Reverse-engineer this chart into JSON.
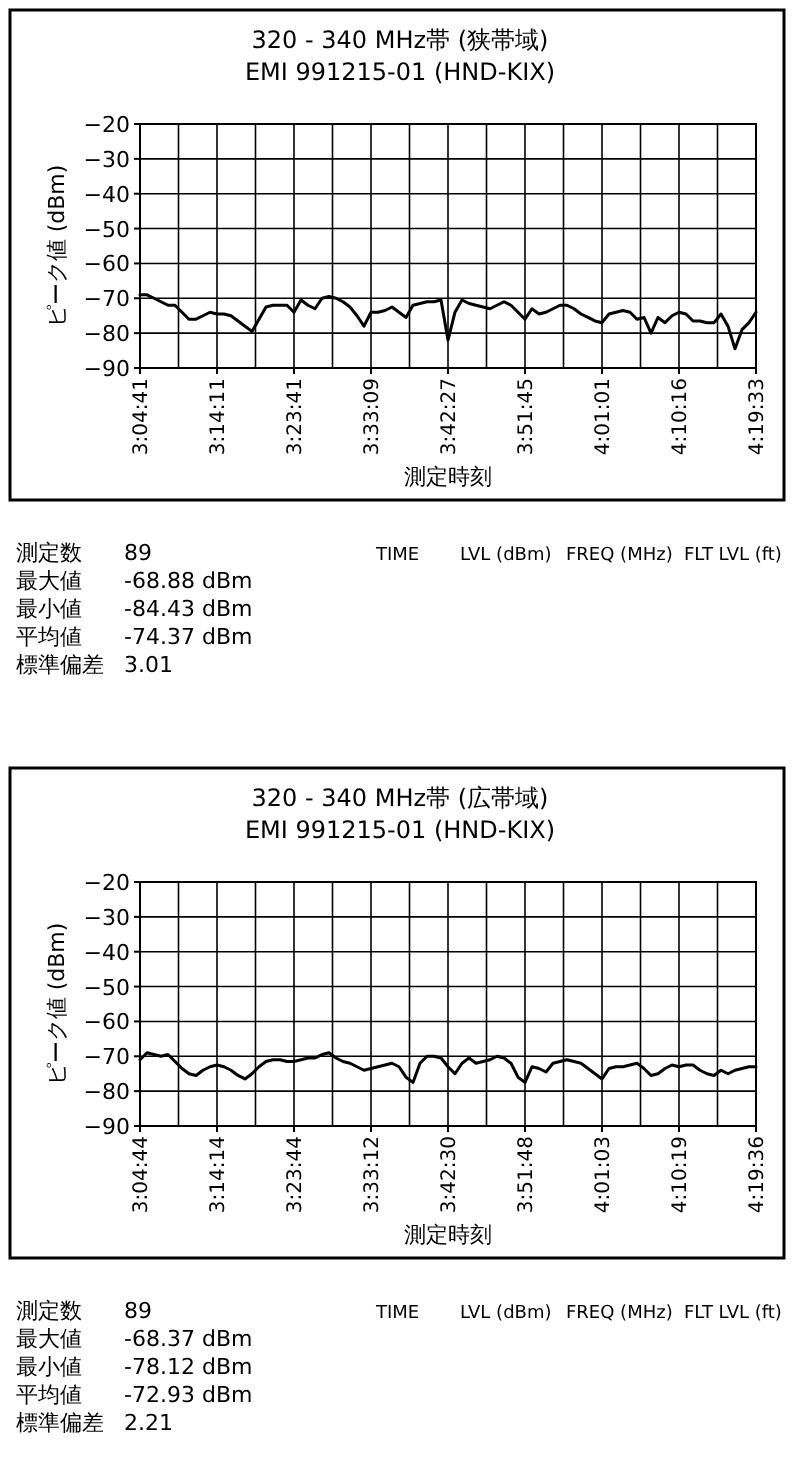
{
  "chart_data": [
    {
      "type": "line",
      "title": "320 - 340 MHz帯 (狭帯域)",
      "subtitle": "EMI 991215-01 (HND-KIX)",
      "xlabel": "測定時刻",
      "ylabel": "ピーク値 (dBm)",
      "color": "#000000",
      "grid": true,
      "ylim": [
        -90,
        -20
      ],
      "yticks": [
        -90,
        -80,
        -70,
        -60,
        -50,
        -40,
        -30,
        -20
      ],
      "categories": [
        "3:04:41",
        null,
        null,
        null,
        null,
        null,
        null,
        null,
        null,
        null,
        null,
        "3:14:11",
        null,
        null,
        null,
        null,
        null,
        null,
        null,
        null,
        null,
        null,
        "3:23:41",
        null,
        null,
        null,
        null,
        null,
        null,
        null,
        null,
        null,
        null,
        "3:33:09",
        null,
        null,
        null,
        null,
        null,
        null,
        null,
        null,
        null,
        null,
        "3:42:27",
        null,
        null,
        null,
        null,
        null,
        null,
        null,
        null,
        null,
        null,
        "3:51:45",
        null,
        null,
        null,
        null,
        null,
        null,
        null,
        null,
        null,
        null,
        "4:01:01",
        null,
        null,
        null,
        null,
        null,
        null,
        null,
        null,
        null,
        null,
        "4:10:16",
        null,
        null,
        null,
        null,
        null,
        null,
        null,
        null,
        null,
        null,
        "4:19:33"
      ],
      "values": [
        -69,
        -69,
        -70,
        -71,
        -72,
        -72,
        -74,
        -76,
        -76,
        -75,
        -74,
        -74.5,
        -74.5,
        -75,
        -76.5,
        -78,
        -79.5,
        -76,
        -72.5,
        -72,
        -72,
        -72,
        -74,
        -70.5,
        -72,
        -73,
        -70,
        -69.5,
        -70,
        -71,
        -72.5,
        -75,
        -78,
        -74,
        -74,
        -73.5,
        -72.5,
        -74,
        -75.5,
        -72,
        -71.5,
        -71,
        -71,
        -70.5,
        -82,
        -74,
        -70.5,
        -71.5,
        -72,
        -72.5,
        -73,
        -72,
        -71,
        -72,
        -74,
        -76,
        -73,
        -74.5,
        -74,
        -73,
        -72,
        -72,
        -73,
        -74.5,
        -75.5,
        -76.5,
        -77,
        -74.5,
        -74,
        -73.5,
        -74,
        -76,
        -75.5,
        -80,
        -75.5,
        -77,
        -75,
        -74,
        -74.5,
        -76.5,
        -76.5,
        -77,
        -77,
        -74.5,
        -78,
        -84.5,
        -79,
        -77,
        -74
      ],
      "annotations": [
        "測定数",
        "89",
        "最大値",
        "-68.88 dBm",
        "最小値",
        "-84.43 dBm",
        "平均値",
        "-74.37 dBm",
        "標準偏差",
        "3.01",
        "TIME",
        "LVL (dBm)",
        "FREQ (MHz)",
        "FLT LVL (ft)"
      ]
    },
    {
      "type": "line",
      "title": "320 - 340 MHz帯 (広帯域)",
      "subtitle": "EMI 991215-01 (HND-KIX)",
      "xlabel": "測定時刻",
      "ylabel": "ピーク値 (dBm)",
      "color": "#000000",
      "grid": true,
      "ylim": [
        -90,
        -20
      ],
      "yticks": [
        -90,
        -80,
        -70,
        -60,
        -50,
        -40,
        -30,
        -20
      ],
      "categories": [
        "3:04:44",
        null,
        null,
        null,
        null,
        null,
        null,
        null,
        null,
        null,
        null,
        "3:14:14",
        null,
        null,
        null,
        null,
        null,
        null,
        null,
        null,
        null,
        null,
        "3:23:44",
        null,
        null,
        null,
        null,
        null,
        null,
        null,
        null,
        null,
        null,
        "3:33:12",
        null,
        null,
        null,
        null,
        null,
        null,
        null,
        null,
        null,
        null,
        "3:42:30",
        null,
        null,
        null,
        null,
        null,
        null,
        null,
        null,
        null,
        null,
        "3:51:48",
        null,
        null,
        null,
        null,
        null,
        null,
        null,
        null,
        null,
        null,
        "4:01:03",
        null,
        null,
        null,
        null,
        null,
        null,
        null,
        null,
        null,
        null,
        "4:10:19",
        null,
        null,
        null,
        null,
        null,
        null,
        null,
        null,
        null,
        null,
        "4:19:36"
      ],
      "values": [
        -71,
        -69,
        -69.5,
        -70,
        -69.5,
        -71.5,
        -73.5,
        -75,
        -75.5,
        -74,
        -73,
        -72.5,
        -73,
        -74,
        -75.5,
        -76.5,
        -75,
        -73,
        -71.5,
        -71,
        -71,
        -71.5,
        -71.5,
        -71,
        -70.5,
        -70.5,
        -69.5,
        -69,
        -70.5,
        -71.5,
        -72,
        -73,
        -74,
        -73.5,
        -73,
        -72.5,
        -72,
        -73,
        -76,
        -77.5,
        -72,
        -70,
        -70,
        -70.5,
        -73,
        -75,
        -72,
        -70.5,
        -72,
        -71.5,
        -71,
        -70,
        -70.5,
        -72,
        -76,
        -77.5,
        -73,
        -73.5,
        -74.5,
        -72,
        -71.5,
        -71,
        -71.5,
        -72,
        -73.5,
        -75,
        -76.5,
        -73.5,
        -73,
        -73,
        -72.5,
        -72,
        -73.5,
        -75.5,
        -75,
        -73.5,
        -72.5,
        -73,
        -72.5,
        -72.5,
        -74,
        -75,
        -75.5,
        -74,
        -75,
        -74,
        -73.5,
        -73,
        -73
      ],
      "annotations": [
        "測定数",
        "89",
        "最大値",
        "-68.37 dBm",
        "最小値",
        "-78.12 dBm",
        "平均値",
        "-72.93 dBm",
        "標準偏差",
        "2.21",
        "TIME",
        "LVL (dBm)",
        "FREQ (MHz)",
        "FLT LVL (ft)"
      ]
    }
  ]
}
